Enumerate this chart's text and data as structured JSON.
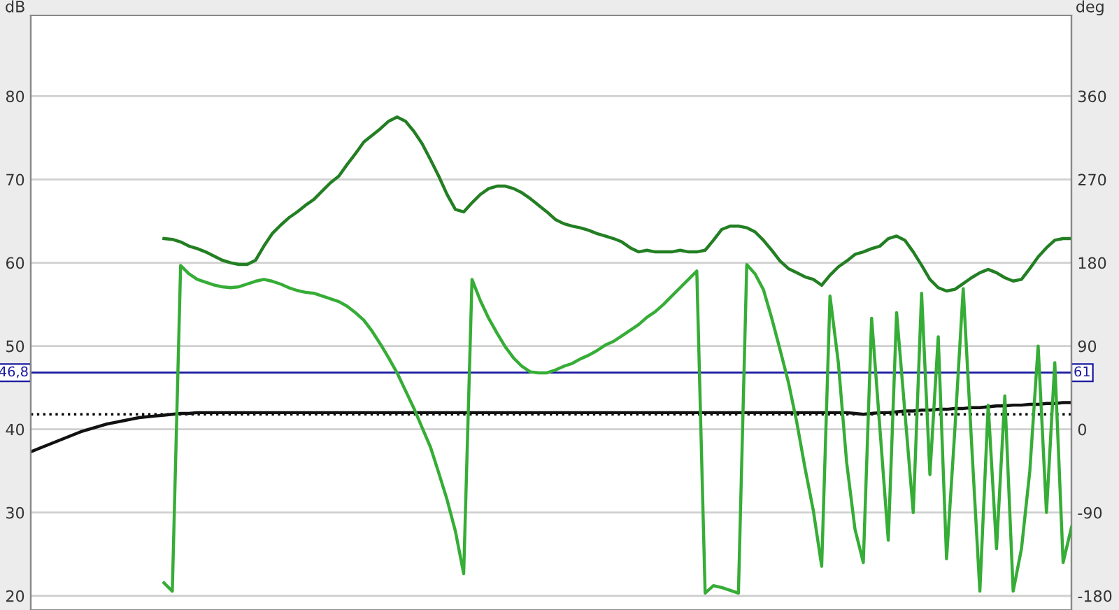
{
  "chart_data": {
    "type": "line",
    "ylabel": "dB",
    "y2label": "deg",
    "categories": [
      null,
      null,
      null,
      null,
      null,
      null,
      null,
      null,
      null,
      null,
      null,
      null,
      null,
      null,
      null,
      null,
      null,
      null,
      null,
      null,
      null,
      null,
      null,
      null,
      null,
      null,
      null,
      null,
      null,
      null,
      null,
      null,
      null,
      null,
      null,
      null,
      null,
      null,
      null,
      null,
      null,
      null,
      null,
      null,
      null,
      null,
      null,
      null,
      null,
      null,
      null,
      null,
      null,
      null,
      null,
      null,
      null,
      null,
      null,
      null,
      null,
      null,
      null,
      null,
      null,
      null,
      null,
      null,
      null,
      null,
      null,
      null,
      null,
      null,
      null,
      null,
      null,
      null,
      null,
      null,
      null,
      null,
      null,
      null,
      null,
      null,
      null,
      null,
      null,
      null,
      null,
      null,
      null,
      null,
      null,
      null,
      null,
      null,
      null,
      null,
      null,
      null,
      null,
      null,
      null,
      null,
      null,
      null,
      null,
      null,
      null,
      null,
      null,
      null,
      null,
      null,
      null,
      null,
      null,
      null,
      null,
      null,
      null,
      null,
      null,
      null
    ],
    "series": [
      {
        "axis": "y",
        "color": "#111111",
        "values": [
          37.3,
          37.7,
          38.1,
          38.5,
          38.9,
          39.3,
          39.7,
          40.0,
          40.3,
          40.6,
          40.8,
          41.0,
          41.2,
          41.4,
          41.5,
          41.6,
          41.7,
          41.8,
          41.9,
          41.9,
          42.0,
          42.0,
          42.0,
          42.0,
          42.0,
          42.0,
          42.0,
          42.0,
          42.0,
          42.0,
          42.0,
          42.0,
          42.0,
          42.0,
          42.0,
          42.0,
          42.0,
          42.0,
          42.0,
          42.0,
          42.0,
          42.0,
          42.0,
          42.0,
          42.0,
          42.0,
          42.0,
          42.0,
          42.0,
          42.0,
          42.0,
          42.0,
          42.0,
          42.0,
          42.0,
          42.0,
          42.0,
          42.0,
          42.0,
          42.0,
          42.0,
          42.0,
          42.0,
          42.0,
          42.0,
          42.0,
          42.0,
          42.0,
          42.0,
          42.0,
          42.0,
          42.0,
          42.0,
          42.0,
          42.0,
          42.0,
          42.0,
          42.0,
          42.0,
          42.0,
          42.0,
          42.0,
          42.0,
          42.0,
          42.0,
          42.0,
          42.0,
          42.0,
          42.0,
          42.0,
          42.0,
          42.0,
          42.0,
          42.0,
          42.0,
          42.0,
          42.0,
          42.0,
          42.0,
          41.9,
          41.8,
          41.9,
          42.0,
          42.0,
          42.1,
          42.2,
          42.2,
          42.3,
          42.3,
          42.4,
          42.4,
          42.5,
          42.5,
          42.6,
          42.6,
          42.7,
          42.8,
          42.8,
          42.9,
          42.9,
          43.0,
          43.0,
          43.1,
          43.1,
          43.2,
          43.2
        ]
      },
      {
        "axis": "y",
        "color": "#237f23",
        "values": [
          null,
          null,
          null,
          null,
          null,
          null,
          null,
          null,
          null,
          null,
          null,
          null,
          null,
          null,
          null,
          null,
          62.9,
          62.8,
          62.5,
          62.0,
          61.7,
          61.3,
          60.8,
          60.3,
          60.0,
          59.8,
          59.8,
          60.3,
          62.0,
          63.5,
          64.5,
          65.4,
          66.1,
          66.9,
          67.6,
          68.6,
          69.6,
          70.4,
          71.8,
          73.1,
          74.5,
          75.3,
          76.1,
          77.0,
          77.5,
          77.0,
          75.8,
          74.3,
          72.4,
          70.4,
          68.2,
          66.4,
          66.1,
          67.2,
          68.2,
          68.9,
          69.2,
          69.2,
          68.9,
          68.4,
          67.7,
          66.9,
          66.1,
          65.2,
          64.7,
          64.4,
          64.2,
          63.9,
          63.5,
          63.2,
          62.9,
          62.5,
          61.8,
          61.3,
          61.5,
          61.3,
          61.3,
          61.3,
          61.5,
          61.3,
          61.3,
          61.5,
          62.7,
          64.0,
          64.4,
          64.4,
          64.2,
          63.7,
          62.7,
          61.5,
          60.2,
          59.3,
          58.8,
          58.3,
          58.0,
          57.3,
          58.5,
          59.5,
          60.2,
          61.0,
          61.3,
          61.7,
          62.0,
          62.9,
          63.2,
          62.7,
          61.3,
          59.7,
          58.0,
          57.0,
          56.6,
          56.8,
          57.5,
          58.2,
          58.8,
          59.2,
          58.8,
          58.2,
          57.8,
          58.0,
          59.3,
          60.7,
          61.8,
          62.7,
          62.9,
          62.9
        ]
      },
      {
        "axis": "y2",
        "color": "#36ad36",
        "values": [
          null,
          null,
          null,
          null,
          null,
          null,
          null,
          null,
          null,
          null,
          null,
          null,
          null,
          null,
          null,
          null,
          -166,
          -175,
          177,
          168,
          162,
          159,
          156,
          154,
          153,
          154,
          157,
          160,
          162,
          160,
          157,
          153,
          150,
          148,
          147,
          144,
          141,
          138,
          133,
          126,
          118,
          106,
          92,
          77,
          61,
          42,
          23,
          2,
          -19,
          -47,
          -76,
          -110,
          -156,
          162,
          139,
          120,
          104,
          89,
          77,
          68,
          62,
          61,
          61,
          64,
          68,
          71,
          76,
          80,
          85,
          91,
          95,
          101,
          107,
          113,
          121,
          127,
          135,
          144,
          153,
          162,
          171,
          -177,
          -169,
          -171,
          -174,
          -177,
          178,
          168,
          151,
          120,
          86,
          51,
          8,
          -42,
          -88,
          -148,
          144,
          72,
          -36,
          -108,
          -144,
          120,
          0,
          -120,
          126,
          18,
          -90,
          147,
          -49,
          100,
          -140,
          0,
          152,
          -14,
          -175,
          26,
          -129,
          36,
          -175,
          -129,
          -45,
          90,
          -90,
          72,
          -144,
          -106
        ]
      }
    ],
    "ylim": [
      18.3,
      89.7
    ],
    "yticks": [
      20,
      30,
      40,
      50,
      60,
      70,
      80
    ],
    "y2lim": [
      -195.3,
      447.3
    ],
    "y2ticks": [
      -180,
      -90,
      0,
      90,
      180,
      270,
      360
    ],
    "ref_lines": [
      {
        "axis": "y",
        "value": 41.8,
        "color": "#000000",
        "line_style": "dotted"
      },
      {
        "axis": "y",
        "value": 46.8,
        "label": "46,8",
        "color": "#1a1aa0"
      }
    ],
    "annotations": [
      "61"
    ],
    "grid": "y",
    "tick_labels": "y",
    "line_style": "solid"
  }
}
